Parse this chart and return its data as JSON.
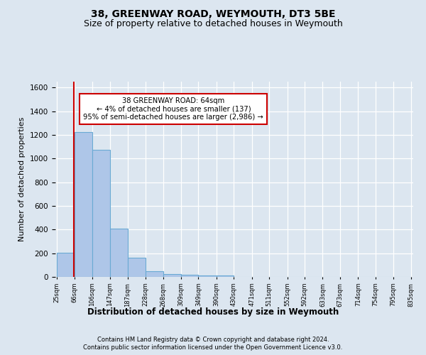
{
  "title1": "38, GREENWAY ROAD, WEYMOUTH, DT3 5BE",
  "title2": "Size of property relative to detached houses in Weymouth",
  "xlabel": "Distribution of detached houses by size in Weymouth",
  "ylabel": "Number of detached properties",
  "footer1": "Contains HM Land Registry data © Crown copyright and database right 2024.",
  "footer2": "Contains public sector information licensed under the Open Government Licence v3.0.",
  "annotation_title": "38 GREENWAY ROAD: 64sqm",
  "annotation_line1": "← 4% of detached houses are smaller (137)",
  "annotation_line2": "95% of semi-detached houses are larger (2,986) →",
  "property_size_sqm": 64,
  "bar_edges": [
    25,
    66,
    106,
    147,
    187,
    228,
    268,
    309,
    349,
    390,
    430,
    471,
    511,
    552,
    592,
    633,
    673,
    714,
    754,
    795,
    835
  ],
  "bar_heights": [
    205,
    1225,
    1075,
    410,
    165,
    48,
    27,
    20,
    15,
    10,
    0,
    0,
    0,
    0,
    0,
    0,
    0,
    0,
    0,
    0
  ],
  "bar_color": "#aec6e8",
  "bar_edge_color": "#6aaad4",
  "vline_color": "#cc0000",
  "vline_x": 64,
  "ylim": [
    0,
    1650
  ],
  "yticks": [
    0,
    200,
    400,
    600,
    800,
    1000,
    1200,
    1400,
    1600
  ],
  "bg_color": "#dce6f0",
  "plot_bg": "#dce6f0",
  "grid_color": "#ffffff",
  "title1_fontsize": 10,
  "title2_fontsize": 9,
  "xlabel_fontsize": 8.5,
  "ylabel_fontsize": 8
}
